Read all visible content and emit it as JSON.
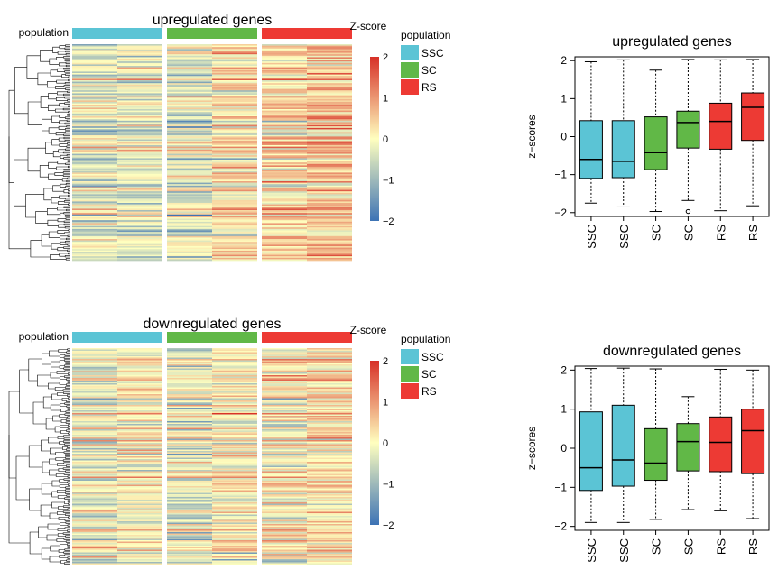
{
  "colors": {
    "SSC": "#5bc4d5",
    "SC": "#61b847",
    "RS": "#ed3a34",
    "zscore_low": "#3d73b5",
    "zscore_mid": "#ffffbf",
    "zscore_high": "#d73027"
  },
  "chart_data": [
    {
      "type": "heatmap",
      "title": "upregulated genes",
      "annotation_label": "population",
      "colorbar_title": "Z-score",
      "colorbar_ticks": [
        "2",
        "1",
        "0",
        "−1",
        "−2"
      ],
      "colorbar_range": [
        -2,
        2
      ],
      "legend_title": "population",
      "legend_entries": [
        "SSC",
        "SC",
        "RS"
      ],
      "columns": [
        "SSC",
        "SSC",
        "SC",
        "SC",
        "RS",
        "RS"
      ],
      "column_groups": [
        "SSC",
        "SC",
        "RS"
      ],
      "row_count": 150,
      "column_mean_zscore": [
        -0.3,
        -0.35,
        -0.35,
        0.25,
        0.3,
        0.55
      ]
    },
    {
      "type": "heatmap",
      "title": "downregulated genes",
      "annotation_label": "population",
      "colorbar_title": "Z-score",
      "colorbar_ticks": [
        "2",
        "1",
        "0",
        "−1",
        "−2"
      ],
      "colorbar_range": [
        -2,
        2
      ],
      "legend_title": "population",
      "legend_entries": [
        "SSC",
        "SC",
        "RS"
      ],
      "columns": [
        "SSC",
        "SSC",
        "SC",
        "SC",
        "RS",
        "RS"
      ],
      "column_groups": [
        "SSC",
        "SC",
        "RS"
      ],
      "row_count": 160,
      "column_mean_zscore": [
        -0.15,
        0.05,
        -0.2,
        0.1,
        0.1,
        0.3
      ]
    },
    {
      "type": "box",
      "title": "upregulated genes",
      "ylabel": "z−scores",
      "ylim": [
        -2.1,
        2.1
      ],
      "yticks": [
        -2,
        -1,
        0,
        1,
        2
      ],
      "ytick_labels": [
        "−2",
        "−1",
        "0",
        "1",
        "2"
      ],
      "categories": [
        "SSC",
        "SSC",
        "SC",
        "SC",
        "RS",
        "RS"
      ],
      "boxes": [
        {
          "group": "SSC",
          "min": -1.75,
          "q1": -1.1,
          "median": -0.6,
          "q3": 0.42,
          "max": 1.97,
          "outliers": []
        },
        {
          "group": "SSC",
          "min": -1.85,
          "q1": -1.08,
          "median": -0.65,
          "q3": 0.42,
          "max": 2.02,
          "outliers": []
        },
        {
          "group": "SC",
          "min": -1.97,
          "q1": -0.87,
          "median": -0.42,
          "q3": 0.52,
          "max": 1.75,
          "outliers": []
        },
        {
          "group": "SC",
          "min": -1.68,
          "q1": -0.3,
          "median": 0.37,
          "q3": 0.67,
          "max": 2.03,
          "outliers": [
            -1.97
          ]
        },
        {
          "group": "RS",
          "min": -1.95,
          "q1": -0.33,
          "median": 0.4,
          "q3": 0.88,
          "max": 2.02,
          "outliers": []
        },
        {
          "group": "RS",
          "min": -1.82,
          "q1": -0.1,
          "median": 0.77,
          "q3": 1.15,
          "max": 2.03,
          "outliers": []
        }
      ]
    },
    {
      "type": "box",
      "title": "downregulated genes",
      "ylabel": "z−scores",
      "ylim": [
        -2.1,
        2.1
      ],
      "yticks": [
        -2,
        -1,
        0,
        1,
        2
      ],
      "ytick_labels": [
        "−2",
        "−1",
        "0",
        "1",
        "2"
      ],
      "categories": [
        "SSC",
        "SSC",
        "SC",
        "SC",
        "RS",
        "RS"
      ],
      "boxes": [
        {
          "group": "SSC",
          "min": -1.9,
          "q1": -1.08,
          "median": -0.5,
          "q3": 0.93,
          "max": 2.04,
          "outliers": []
        },
        {
          "group": "SSC",
          "min": -1.9,
          "q1": -0.97,
          "median": -0.3,
          "q3": 1.1,
          "max": 2.05,
          "outliers": []
        },
        {
          "group": "SC",
          "min": -1.82,
          "q1": -0.82,
          "median": -0.38,
          "q3": 0.5,
          "max": 2.03,
          "outliers": []
        },
        {
          "group": "SC",
          "min": -1.57,
          "q1": -0.58,
          "median": 0.17,
          "q3": 0.63,
          "max": 1.32,
          "outliers": []
        },
        {
          "group": "RS",
          "min": -1.6,
          "q1": -0.6,
          "median": 0.15,
          "q3": 0.8,
          "max": 2.02,
          "outliers": []
        },
        {
          "group": "RS",
          "min": -1.8,
          "q1": -0.65,
          "median": 0.45,
          "q3": 1.0,
          "max": 2.0,
          "outliers": []
        }
      ]
    }
  ]
}
